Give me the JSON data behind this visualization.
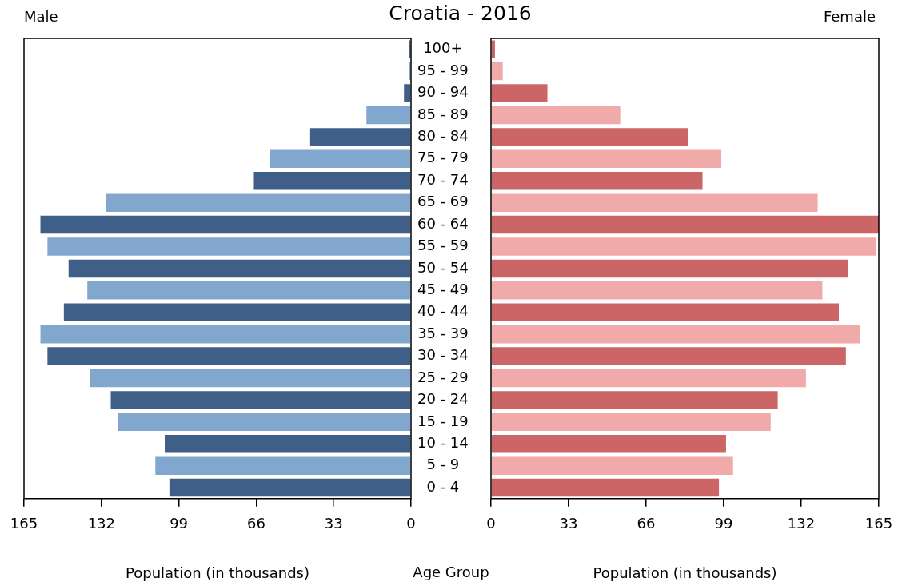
{
  "chart_data": [
    {
      "type": "bar",
      "orientation": "horizontal",
      "title": "Croatia - 2016",
      "subtitle": "Male",
      "xlabel": "Population (in thousands)",
      "ylabel": "Age Group",
      "categories": [
        "100+",
        "95 - 99",
        "90 - 94",
        "85 - 89",
        "80 - 84",
        "75 - 79",
        "70 - 74",
        "65 - 69",
        "60 - 64",
        "55 - 59",
        "50 - 54",
        "45 - 49",
        "40 - 44",
        "35 - 39",
        "30 - 34",
        "25 - 29",
        "20 - 24",
        "15 - 19",
        "10 - 14",
        "5 - 9",
        "0 - 4"
      ],
      "values": [
        0.8,
        1,
        3,
        19,
        43,
        60,
        67,
        130,
        158,
        155,
        146,
        138,
        148,
        158,
        155,
        137,
        128,
        125,
        105,
        109,
        103
      ],
      "colors": [
        "#3f5f88",
        "#82a7cf",
        "#3f5f88",
        "#82a7cf",
        "#3f5f88",
        "#82a7cf",
        "#3f5f88",
        "#82a7cf",
        "#3f5f88",
        "#82a7cf",
        "#3f5f88",
        "#82a7cf",
        "#3f5f88",
        "#82a7cf",
        "#3f5f88",
        "#82a7cf",
        "#3f5f88",
        "#82a7cf",
        "#3f5f88",
        "#82a7cf",
        "#3f5f88"
      ],
      "xlim": [
        165,
        0
      ],
      "xticks": [
        0,
        33,
        66,
        99,
        132,
        165
      ]
    },
    {
      "type": "bar",
      "orientation": "horizontal",
      "subtitle": "Female",
      "xlabel": "Population (in thousands)",
      "tick_labels": "x",
      "categories": [
        null,
        null,
        null,
        null,
        null,
        null,
        null,
        null,
        null,
        null,
        null,
        null,
        null,
        null,
        null,
        null,
        null,
        null,
        null,
        null,
        null
      ],
      "values": [
        1.7,
        5,
        24,
        55,
        84,
        98,
        90,
        139,
        165,
        164,
        152,
        141,
        148,
        157,
        151,
        134,
        122,
        119,
        100,
        103,
        97
      ],
      "colors": [
        "#cc6666",
        "#f0aaaa",
        "#cc6666",
        "#f0aaaa",
        "#cc6666",
        "#f0aaaa",
        "#cc6666",
        "#f0aaaa",
        "#cc6666",
        "#f0aaaa",
        "#cc6666",
        "#f0aaaa",
        "#cc6666",
        "#f0aaaa",
        "#cc6666",
        "#f0aaaa",
        "#cc6666",
        "#f0aaaa",
        "#cc6666",
        "#f0aaaa",
        "#cc6666"
      ],
      "xlim": [
        0,
        165
      ],
      "xticks": [
        0,
        33,
        66,
        99,
        132,
        165
      ]
    }
  ]
}
